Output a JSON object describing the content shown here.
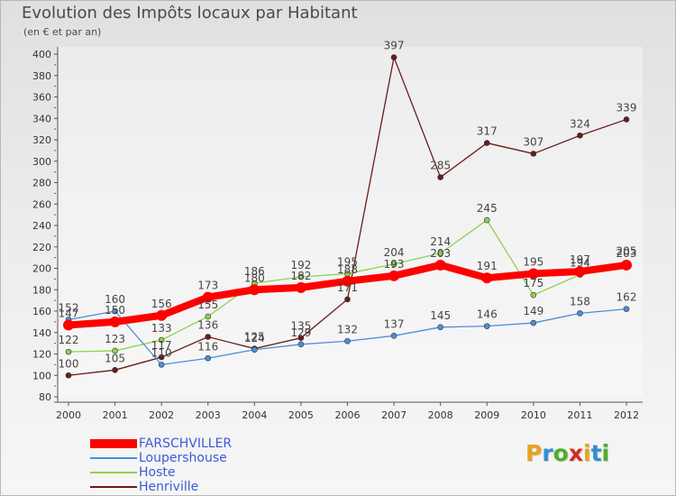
{
  "header": {
    "title": "Evolution des Impôts locaux par Habitant",
    "subtitle": "(en € et par an)"
  },
  "logo": {
    "text": "Proxiti",
    "colors": [
      "#e8a21c",
      "#2e8fd4",
      "#4caf2a",
      "#d62a2a",
      "#e8a21c",
      "#2e8fd4",
      "#4caf2a"
    ]
  },
  "chart_data": {
    "type": "line",
    "title": "Evolution des Impôts locaux par Habitant",
    "subtitle": "(en € et par an)",
    "xlabel": "",
    "ylabel": "",
    "x": [
      "2000",
      "2001",
      "2002",
      "2003",
      "2004",
      "2005",
      "2006",
      "2007",
      "2008",
      "2009",
      "2010",
      "2011",
      "2012"
    ],
    "ylim": [
      80,
      400
    ],
    "yticks": [
      80,
      100,
      120,
      140,
      160,
      180,
      200,
      220,
      240,
      260,
      280,
      300,
      320,
      340,
      360,
      380,
      400
    ],
    "grid": false,
    "legend_position": "bottom-left",
    "series": [
      {
        "name": "FARSCHVILLER",
        "color": "#ff0000",
        "values": [
          147,
          150,
          156,
          173,
          180,
          182,
          188,
          193,
          203,
          191,
          195,
          197,
          203
        ]
      },
      {
        "name": "Loupershouse",
        "color": "#4a90d9",
        "values": [
          152,
          160,
          110,
          116,
          124,
          129,
          132,
          137,
          145,
          146,
          149,
          158,
          162
        ]
      },
      {
        "name": "Hoste",
        "color": "#8fd14f",
        "values": [
          122,
          123,
          133,
          155,
          186,
          192,
          195,
          204,
          214,
          245,
          175,
          194,
          205
        ]
      },
      {
        "name": "Henriville",
        "color": "#6b1a1a",
        "values": [
          100,
          105,
          117,
          136,
          125,
          135,
          171,
          397,
          285,
          317,
          307,
          324,
          339
        ]
      }
    ]
  }
}
